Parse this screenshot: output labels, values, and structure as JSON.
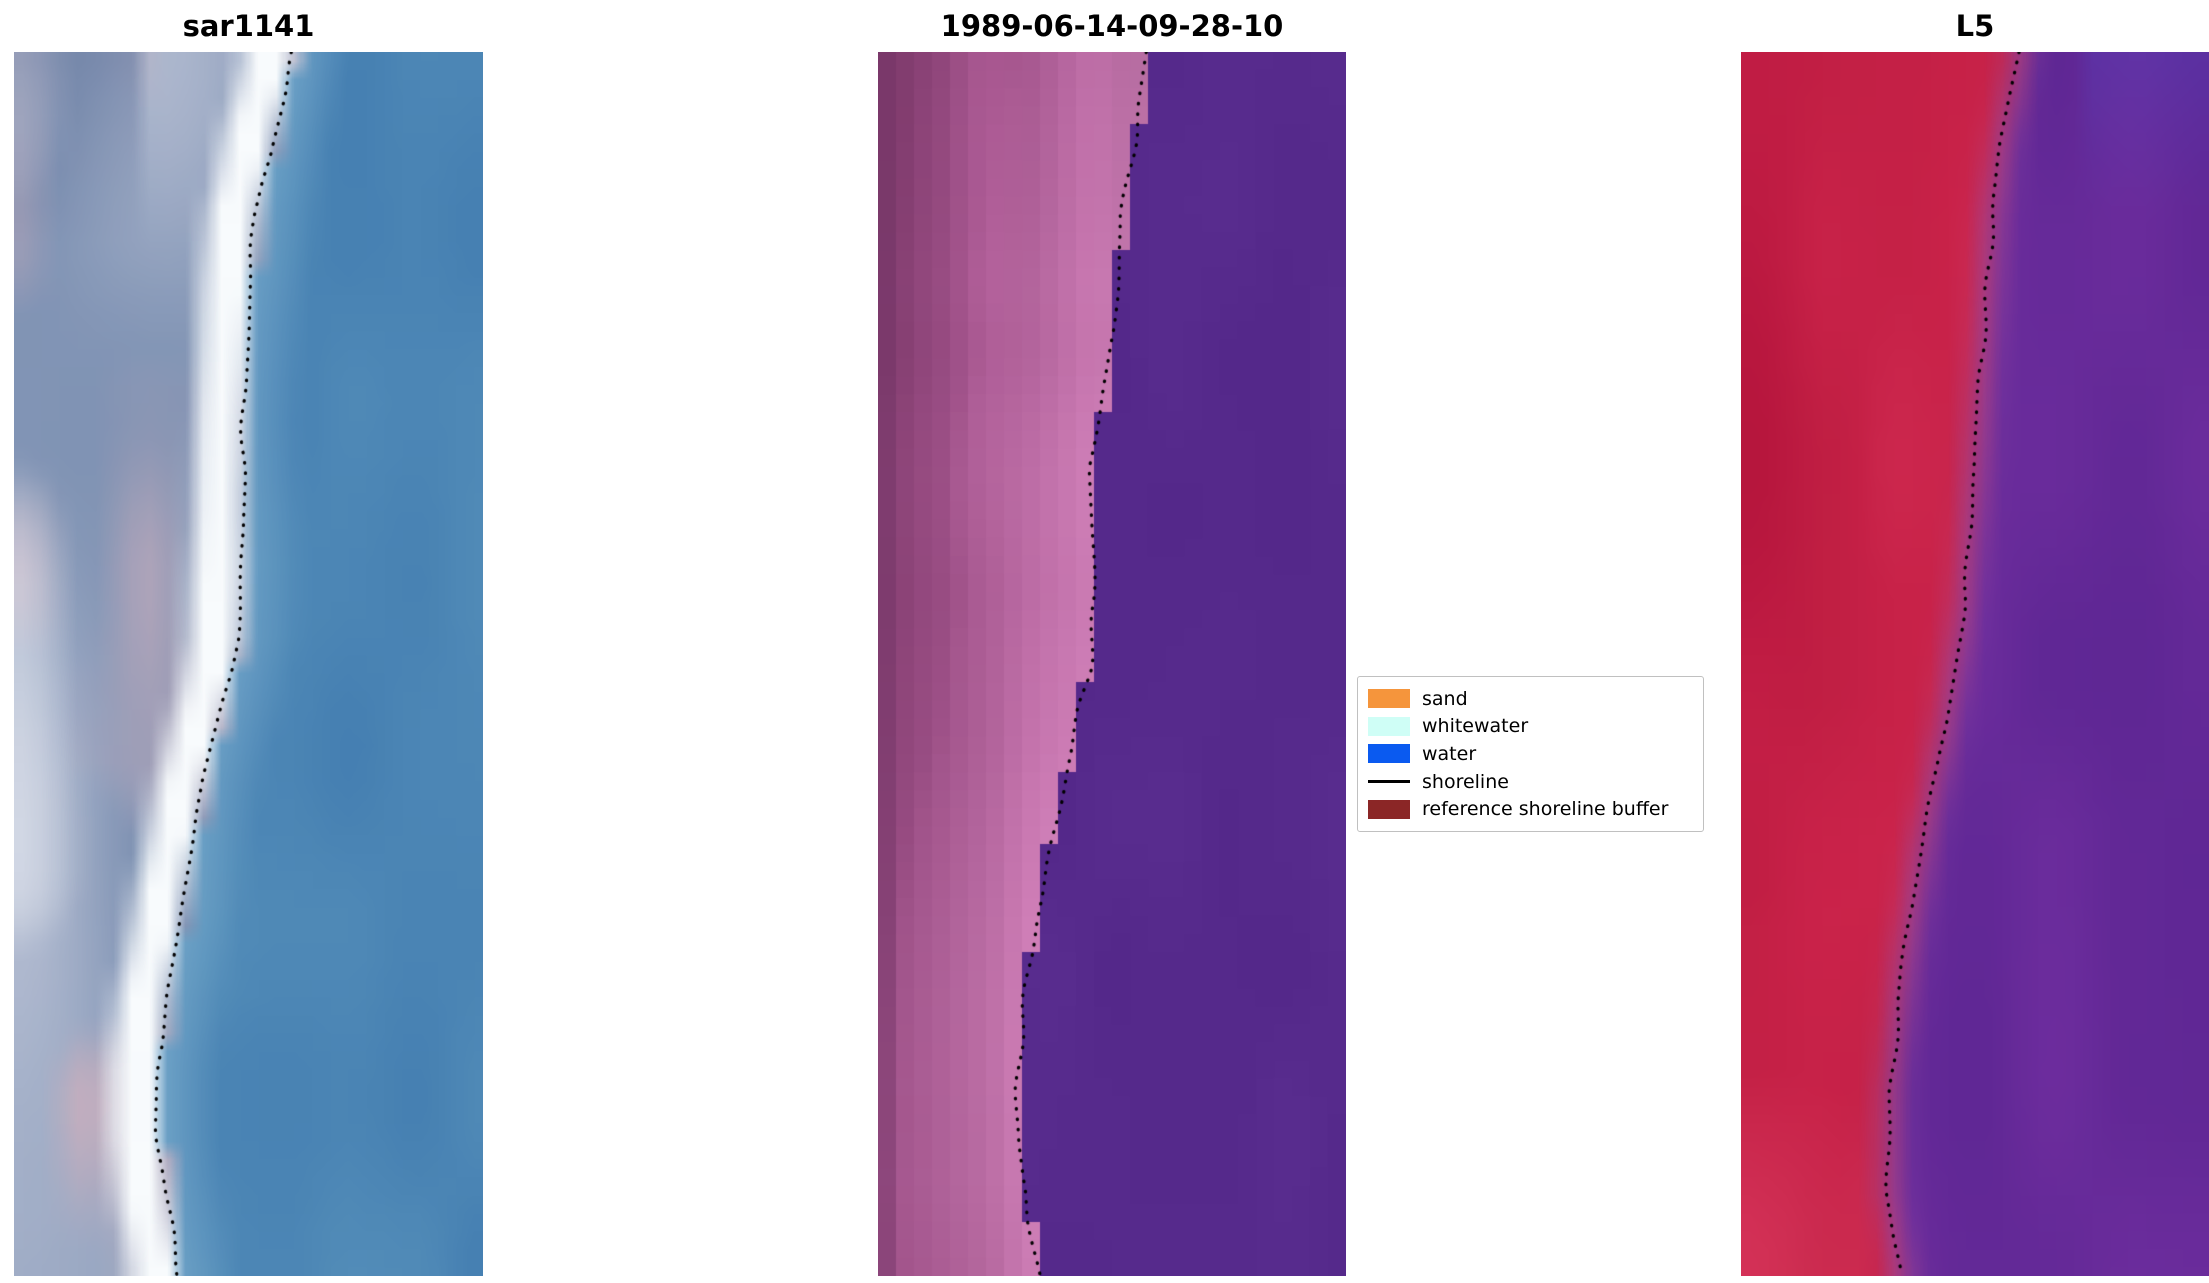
{
  "chart_data": [
    {
      "type": "heatmap",
      "title": "sar1141",
      "palette": {
        "water": "#4C86B5",
        "water_nearshore": "#96C3DC",
        "whitewater_band": "#F8FBFD",
        "land_light": "#B8C0D4",
        "land_dark": "#7288AC",
        "land_pink": "#C9AFBE"
      },
      "shoreline_xy_norm": [
        [
          0.595,
          0.0
        ],
        [
          0.547,
          0.073
        ],
        [
          0.517,
          0.131
        ],
        [
          0.501,
          0.189
        ],
        [
          0.489,
          0.305
        ],
        [
          0.483,
          0.421
        ],
        [
          0.477,
          0.479
        ],
        [
          0.447,
          0.536
        ],
        [
          0.408,
          0.594
        ],
        [
          0.378,
          0.652
        ],
        [
          0.353,
          0.71
        ],
        [
          0.326,
          0.768
        ],
        [
          0.308,
          0.826
        ],
        [
          0.308,
          0.884
        ],
        [
          0.326,
          0.942
        ],
        [
          0.35,
          1.0
        ]
      ]
    },
    {
      "type": "heatmap",
      "title": "1989-06-14-09-28-10",
      "palette": {
        "water": "#562A8C",
        "shore_pink": "#C97AB2",
        "land_magenta": "#A3548C",
        "land_dark": "#8A4276",
        "edge_dark": "#76386A"
      },
      "shoreline_xy_norm": [
        [
          0.579,
          0.0
        ],
        [
          0.548,
          0.073
        ],
        [
          0.518,
          0.131
        ],
        [
          0.506,
          0.224
        ],
        [
          0.451,
          0.34
        ],
        [
          0.464,
          0.444
        ],
        [
          0.451,
          0.502
        ],
        [
          0.415,
          0.571
        ],
        [
          0.373,
          0.641
        ],
        [
          0.336,
          0.71
        ],
        [
          0.312,
          0.78
        ],
        [
          0.297,
          0.849
        ],
        [
          0.303,
          0.919
        ],
        [
          0.345,
          1.0
        ]
      ]
    },
    {
      "type": "heatmap",
      "title": "L5",
      "palette": {
        "land_red": "#C62147",
        "land_red_dark": "#A80C34",
        "land_red_light": "#E14669",
        "water_purple": "#662A99",
        "corner_blue": "#5638AC",
        "transition": "#B669AF"
      },
      "shoreline_xy_norm": [
        [
          0.597,
          0.0
        ],
        [
          0.558,
          0.073
        ],
        [
          0.536,
          0.131
        ],
        [
          0.521,
          0.224
        ],
        [
          0.5,
          0.34
        ],
        [
          0.476,
          0.45
        ],
        [
          0.436,
          0.55
        ],
        [
          0.385,
          0.65
        ],
        [
          0.345,
          0.75
        ],
        [
          0.318,
          0.85
        ],
        [
          0.315,
          0.93
        ],
        [
          0.339,
          1.0
        ]
      ]
    }
  ],
  "legend": {
    "items": [
      {
        "label": "sand",
        "swatch": "patch",
        "color": "#F5953C"
      },
      {
        "label": "whitewater",
        "swatch": "patch",
        "color": "#CFFEF6"
      },
      {
        "label": "water",
        "swatch": "patch",
        "color": "#0A5AF0"
      },
      {
        "label": "shoreline",
        "swatch": "line",
        "color": "#000000"
      },
      {
        "label": "reference shoreline buffer",
        "swatch": "patch",
        "color": "#8B2626"
      }
    ]
  },
  "shoreline_style": {
    "color": "#000000",
    "style": "dotted"
  }
}
